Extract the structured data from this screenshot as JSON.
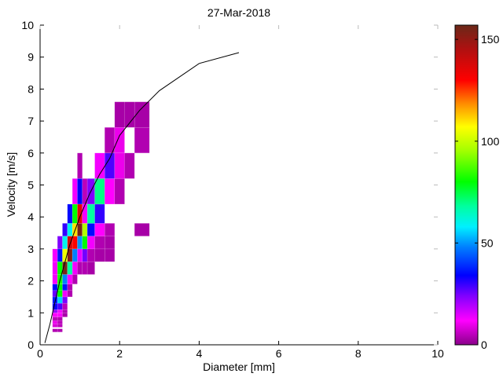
{
  "chart_data": {
    "type": "heatmap",
    "title": "27-Mar-2018",
    "xlabel": "Diameter [mm]",
    "ylabel": "Velocity [m/s]",
    "xlim": [
      0,
      10
    ],
    "ylim": [
      0,
      10
    ],
    "xticks": [
      "0",
      "2",
      "4",
      "6",
      "8",
      "10"
    ],
    "yticks": [
      "0",
      "1",
      "2",
      "3",
      "4",
      "5",
      "6",
      "7",
      "8",
      "9",
      "10"
    ],
    "colorbar": {
      "range": [
        0,
        157
      ],
      "ticks": [
        "0",
        "50",
        "100",
        "150"
      ]
    },
    "d_bins": [
      0.3125,
      0.4375,
      0.5625,
      0.6875,
      0.8125,
      0.9375,
      1.0625,
      1.1875,
      1.375,
      1.625,
      1.875,
      2.125,
      2.375,
      2.75
    ],
    "v_bins": [
      [
        0.4,
        0.5
      ],
      [
        0.55,
        0.65
      ],
      [
        0.65,
        0.75
      ],
      [
        0.75,
        0.87
      ],
      [
        0.87,
        1.0
      ],
      [
        1.0,
        1.1
      ],
      [
        1.1,
        1.3
      ],
      [
        1.3,
        1.5
      ],
      [
        1.5,
        1.7
      ],
      [
        1.7,
        1.9
      ],
      [
        1.9,
        2.2
      ],
      [
        2.2,
        2.6
      ],
      [
        2.6,
        3.0
      ],
      [
        3.0,
        3.4
      ],
      [
        3.4,
        3.8
      ],
      [
        3.8,
        4.4
      ],
      [
        4.4,
        5.2
      ],
      [
        5.2,
        6.0
      ],
      [
        6.0,
        6.8
      ],
      [
        6.8,
        7.6
      ]
    ],
    "cells_col_row_count": [
      [
        0,
        0,
        4
      ],
      [
        1,
        0,
        4
      ],
      [
        0,
        1,
        8
      ],
      [
        1,
        1,
        5
      ],
      [
        0,
        2,
        10
      ],
      [
        1,
        2,
        5
      ],
      [
        0,
        3,
        5
      ],
      [
        1,
        3,
        4
      ],
      [
        0,
        4,
        12
      ],
      [
        1,
        4,
        12
      ],
      [
        2,
        4,
        3
      ],
      [
        0,
        5,
        22
      ],
      [
        1,
        5,
        13
      ],
      [
        2,
        5,
        4
      ],
      [
        0,
        6,
        33
      ],
      [
        1,
        6,
        28
      ],
      [
        2,
        6,
        5
      ],
      [
        0,
        7,
        36
      ],
      [
        1,
        7,
        55
      ],
      [
        2,
        7,
        24
      ],
      [
        0,
        8,
        26
      ],
      [
        1,
        8,
        80
      ],
      [
        2,
        8,
        13
      ],
      [
        3,
        8,
        4
      ],
      [
        0,
        9,
        34
      ],
      [
        1,
        9,
        80
      ],
      [
        2,
        9,
        36
      ],
      [
        3,
        9,
        4
      ],
      [
        0,
        10,
        13
      ],
      [
        1,
        10,
        82
      ],
      [
        2,
        10,
        48
      ],
      [
        3,
        10,
        12
      ],
      [
        4,
        10,
        4
      ],
      [
        0,
        11,
        13
      ],
      [
        1,
        11,
        80
      ],
      [
        2,
        11,
        155
      ],
      [
        3,
        11,
        68
      ],
      [
        4,
        11,
        13
      ],
      [
        5,
        11,
        4
      ],
      [
        6,
        11,
        4
      ],
      [
        7,
        11,
        3
      ],
      [
        0,
        12,
        13
      ],
      [
        1,
        12,
        36
      ],
      [
        2,
        12,
        105
      ],
      [
        3,
        12,
        152
      ],
      [
        4,
        12,
        48
      ],
      [
        5,
        12,
        14
      ],
      [
        6,
        12,
        25
      ],
      [
        7,
        12,
        4
      ],
      [
        8,
        12,
        3
      ],
      [
        9,
        12,
        3
      ],
      [
        1,
        13,
        24
      ],
      [
        2,
        13,
        60
      ],
      [
        3,
        13,
        138
      ],
      [
        4,
        13,
        130
      ],
      [
        5,
        13,
        50
      ],
      [
        6,
        13,
        80
      ],
      [
        7,
        13,
        13
      ],
      [
        8,
        13,
        4
      ],
      [
        9,
        13,
        3
      ],
      [
        2,
        14,
        30
      ],
      [
        3,
        14,
        60
      ],
      [
        4,
        14,
        110
      ],
      [
        5,
        14,
        155
      ],
      [
        6,
        14,
        97
      ],
      [
        7,
        14,
        35
      ],
      [
        8,
        14,
        12
      ],
      [
        9,
        14,
        4
      ],
      [
        12,
        14,
        3
      ],
      [
        3,
        15,
        35
      ],
      [
        4,
        15,
        80
      ],
      [
        5,
        15,
        135
      ],
      [
        6,
        15,
        13
      ],
      [
        7,
        15,
        68
      ],
      [
        8,
        15,
        30
      ],
      [
        4,
        16,
        13
      ],
      [
        5,
        16,
        34
      ],
      [
        6,
        16,
        5
      ],
      [
        7,
        16,
        24
      ],
      [
        8,
        16,
        70
      ],
      [
        9,
        16,
        12
      ],
      [
        10,
        16,
        4
      ],
      [
        5,
        17,
        4
      ],
      [
        8,
        17,
        13
      ],
      [
        9,
        17,
        28
      ],
      [
        10,
        17,
        10
      ],
      [
        11,
        17,
        4
      ],
      [
        9,
        18,
        4
      ],
      [
        10,
        18,
        10
      ],
      [
        12,
        18,
        4
      ],
      [
        10,
        19,
        3
      ],
      [
        11,
        19,
        3
      ],
      [
        12,
        19,
        3
      ]
    ],
    "fit_curve": {
      "x": [
        0.12,
        0.25,
        0.5,
        0.75,
        1,
        1.25,
        1.5,
        1.75,
        2,
        2.5,
        3,
        4,
        5
      ],
      "y": [
        0.06,
        0.65,
        2.02,
        3.14,
        4.0,
        4.74,
        5.34,
        5.83,
        6.55,
        7.33,
        7.95,
        8.8,
        9.14
      ]
    },
    "colormap_stops": [
      [
        0,
        "#8a008a"
      ],
      [
        12,
        "#ff00ff"
      ],
      [
        24,
        "#8000ff"
      ],
      [
        34,
        "#0000ff"
      ],
      [
        48,
        "#0080ff"
      ],
      [
        58,
        "#00f0ff"
      ],
      [
        68,
        "#00ffa0"
      ],
      [
        80,
        "#00ff00"
      ],
      [
        95,
        "#a0ff00"
      ],
      [
        107,
        "#ffff00"
      ],
      [
        118,
        "#ff9000"
      ],
      [
        130,
        "#ff0000"
      ],
      [
        145,
        "#b01010"
      ],
      [
        157,
        "#6a2818"
      ]
    ]
  }
}
